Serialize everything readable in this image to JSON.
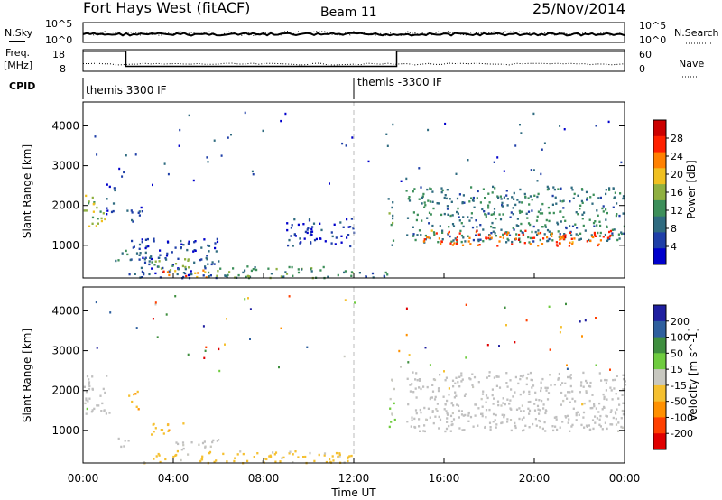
{
  "header": {
    "station": "Fort Hays West (fitACF)",
    "beam": "Beam 11",
    "date": "25/Nov/2014"
  },
  "noise_panel": {
    "left_label": "N.Sky",
    "right_label": "N.Search",
    "left_ticks": [
      "10^5",
      "10^0"
    ],
    "right_ticks": [
      "10^5",
      "10^0"
    ]
  },
  "freq_panel": {
    "left_label_1": "Freq.",
    "left_label_2": "[MHz]",
    "right_label": "Nave",
    "left_ticks": [
      "18",
      "8"
    ],
    "right_ticks": [
      "60",
      "0"
    ],
    "freq_series": [
      {
        "t": 0.0,
        "mhz": 17.3
      },
      {
        "t": 1.9,
        "mhz": 17.3
      },
      {
        "t": 1.9,
        "mhz": 10.3
      },
      {
        "t": 13.9,
        "mhz": 10.3
      },
      {
        "t": 13.9,
        "mhz": 17.3
      },
      {
        "t": 24.0,
        "mhz": 17.3
      }
    ]
  },
  "cpid": {
    "label": "CPID",
    "segments": [
      {
        "start_hour": 0,
        "text": "themis 3300 IF"
      },
      {
        "start_hour": 12,
        "text": "themis -3300 IF"
      }
    ]
  },
  "x_axis": {
    "ticks": [
      "00:00",
      "04:00",
      "08:00",
      "12:00",
      "16:00",
      "20:00",
      "00:00"
    ],
    "label": "Time UT"
  },
  "colors": {
    "power": [
      "#0000cc",
      "#1f3fa8",
      "#2f6b80",
      "#3d8f5a",
      "#8fb040",
      "#f0c020",
      "#ff8000",
      "#ff2000",
      "#cc0000"
    ],
    "velocity": [
      "#1f1fa0",
      "#2e5f9e",
      "#3f8f3f",
      "#6fcc3f",
      "#c8c8c0",
      "#f5c030",
      "#ff9000",
      "#ff4000",
      "#e00000"
    ],
    "ground_scatter": "#c0c0c0",
    "midnight_line": "#bbbbbb"
  },
  "chart_data": [
    {
      "type": "heatmap",
      "title": "Power",
      "xlabel": "Time UT",
      "ylabel": "Slant Range [km]",
      "xlim": [
        0,
        24
      ],
      "ylim": [
        180,
        4600
      ],
      "yticks": [
        "1000",
        "2000",
        "3000",
        "4000"
      ],
      "colorbar": {
        "label": "Power [dB]",
        "ticks": [
          "4",
          "8",
          "12",
          "16",
          "20",
          "24",
          "28"
        ],
        "range": [
          0,
          32
        ]
      },
      "regions": [
        {
          "t0": 0.0,
          "t1": 1.0,
          "r0": 1500,
          "r1": 2300,
          "power": 16
        },
        {
          "t0": 1.0,
          "t1": 1.5,
          "r0": 1800,
          "r1": 2500,
          "power": 6
        },
        {
          "t0": 1.4,
          "t1": 2.0,
          "r0": 600,
          "r1": 900,
          "power": 10
        },
        {
          "t0": 1.9,
          "t1": 2.6,
          "r0": 1500,
          "r1": 2000,
          "power": 6
        },
        {
          "t0": 2.0,
          "t1": 6.0,
          "r0": 200,
          "r1": 1200,
          "power": 6
        },
        {
          "t0": 3.0,
          "t1": 5.0,
          "r0": 400,
          "r1": 700,
          "power": 14
        },
        {
          "t0": 3.5,
          "t1": 5.5,
          "r0": 200,
          "r1": 400,
          "power": 22
        },
        {
          "t0": 5.5,
          "t1": 12.0,
          "r0": 200,
          "r1": 500,
          "power": 12
        },
        {
          "t0": 9.0,
          "t1": 12.0,
          "r0": 1000,
          "r1": 1700,
          "power": 5
        },
        {
          "t0": 12.0,
          "t1": 13.5,
          "r0": 200,
          "r1": 400,
          "power": 7
        },
        {
          "t0": 13.5,
          "t1": 13.8,
          "r0": 1000,
          "r1": 2200,
          "power": 12
        },
        {
          "t0": 14.3,
          "t1": 24.0,
          "r0": 1100,
          "r1": 2500,
          "power": 10
        },
        {
          "t0": 15.0,
          "t1": 23.5,
          "r0": 1000,
          "r1": 1400,
          "power": 25
        }
      ]
    },
    {
      "type": "heatmap",
      "title": "Velocity",
      "xlabel": "Time UT",
      "ylabel": "Slant Range [km]",
      "xlim": [
        0,
        24
      ],
      "ylim": [
        180,
        4600
      ],
      "yticks": [
        "1000",
        "2000",
        "3000",
        "4000"
      ],
      "colorbar": {
        "label": "Velocity [m s^-1]",
        "ticks": [
          "200",
          "100",
          "50",
          "15",
          "-15",
          "-50",
          "-100",
          "-200"
        ]
      },
      "regions": [
        {
          "t0": 0.0,
          "t1": 1.2,
          "r0": 1400,
          "r1": 2400,
          "velocity": 0
        },
        {
          "t0": 1.4,
          "t1": 2.0,
          "r0": 600,
          "r1": 900,
          "velocity": 0
        },
        {
          "t0": 2.0,
          "t1": 2.5,
          "r0": 1500,
          "r1": 2000,
          "velocity": -60
        },
        {
          "t0": 3.0,
          "t1": 4.5,
          "r0": 900,
          "r1": 1200,
          "velocity": -60
        },
        {
          "t0": 4.0,
          "t1": 6.0,
          "r0": 500,
          "r1": 800,
          "velocity": 0
        },
        {
          "t0": 2.5,
          "t1": 12.0,
          "r0": 200,
          "r1": 500,
          "velocity": -40
        },
        {
          "t0": 13.5,
          "t1": 13.8,
          "r0": 1000,
          "r1": 2300,
          "velocity": 30
        },
        {
          "t0": 14.3,
          "t1": 24.0,
          "r0": 1000,
          "r1": 2500,
          "velocity": 0
        }
      ]
    }
  ]
}
